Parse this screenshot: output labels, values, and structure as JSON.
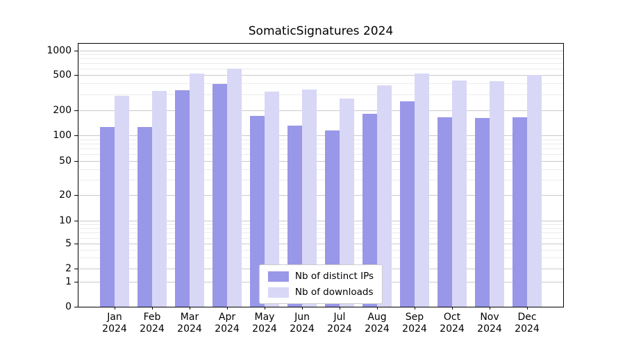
{
  "chart_data": {
    "type": "bar",
    "title": "SomaticSignatures 2024",
    "categories": [
      "Jan",
      "Feb",
      "Mar",
      "Apr",
      "May",
      "Jun",
      "Jul",
      "Aug",
      "Sep",
      "Oct",
      "Nov",
      "Dec"
    ],
    "year_label": "2024",
    "series": [
      {
        "name": "Nb of distinct IPs",
        "color": "#9997e8",
        "values": [
          125,
          127,
          335,
          395,
          170,
          130,
          115,
          180,
          250,
          165,
          160,
          165
        ]
      },
      {
        "name": "Nb of downloads",
        "color": "#d8d7f6",
        "values": [
          290,
          330,
          520,
          600,
          320,
          340,
          270,
          380,
          520,
          430,
          420,
          500
        ]
      }
    ],
    "yticks": [
      0,
      1,
      2,
      5,
      10,
      20,
      50,
      100,
      200,
      500,
      1000
    ],
    "yscale": "log",
    "ylim": [
      0,
      1200
    ],
    "xlabel": "",
    "ylabel": "",
    "grid": true,
    "legend_position": "lower center"
  }
}
